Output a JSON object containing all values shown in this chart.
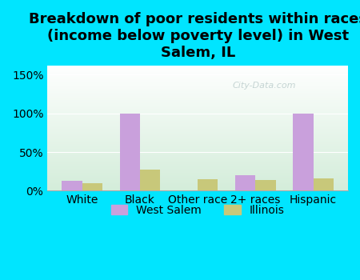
{
  "title": "Breakdown of poor residents within races\n(income below poverty level) in West\nSalem, IL",
  "categories": [
    "White",
    "Black",
    "Other race",
    "2+ races",
    "Hispanic"
  ],
  "west_salem": [
    13,
    100,
    0,
    20,
    100
  ],
  "illinois": [
    10,
    27,
    15,
    14,
    16
  ],
  "west_salem_color": "#c9a0dc",
  "illinois_color": "#c8c87a",
  "background_outer": "#00e5ff",
  "background_plot_top": "#ffffff",
  "background_plot_bottom": "#d4edda",
  "yticks": [
    0,
    50,
    100,
    150
  ],
  "ytick_labels": [
    "0%",
    "50%",
    "100%",
    "150%"
  ],
  "ylim": [
    0,
    162
  ],
  "bar_width": 0.35,
  "legend_labels": [
    "West Salem",
    "Illinois"
  ],
  "watermark": "City-Data.com",
  "title_fontsize": 13,
  "tick_fontsize": 10,
  "legend_fontsize": 10
}
